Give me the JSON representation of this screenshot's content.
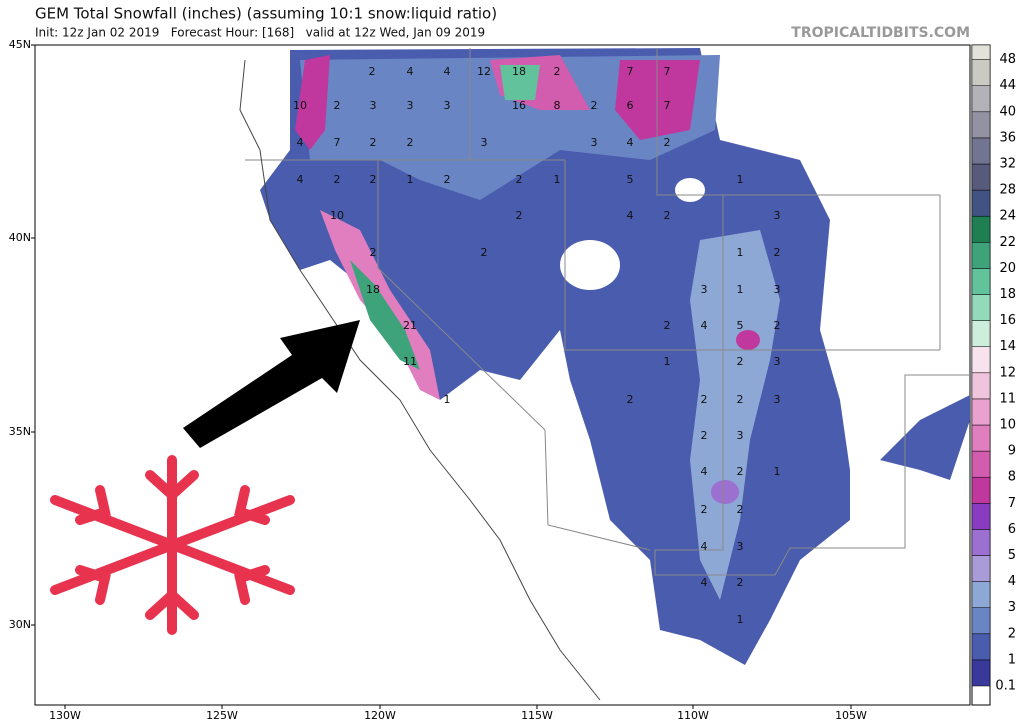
{
  "header": {
    "title": "GEM Total Snowfall (inches) (assuming 10:1 snow:liquid ratio)",
    "subtitle": "Init: 12z Jan 02 2019   Forecast Hour: [168]   valid at 12z Wed, Jan 09 2019",
    "brand": "TROPICALTIDBITS.COM"
  },
  "map": {
    "lat_labels": [
      "45N",
      "40N",
      "35N",
      "30N"
    ],
    "lon_labels": [
      "130W",
      "125W",
      "120W",
      "115W",
      "110W",
      "105W"
    ],
    "colorbar": {
      "levels": [
        0.1,
        1,
        2,
        3,
        4,
        5,
        6,
        7,
        8,
        9,
        10,
        11,
        12,
        14,
        16,
        18,
        20,
        22,
        24,
        28,
        32,
        36,
        40,
        44,
        48
      ],
      "colors": [
        "#38399a",
        "#4a5cae",
        "#6a85c4",
        "#8ea8d6",
        "#a99ad8",
        "#9b70d0",
        "#8a3cc0",
        "#c0389e",
        "#d25cae",
        "#e07ec0",
        "#e9a2cf",
        "#f1c4de",
        "#f8e2ee",
        "#cdeedd",
        "#94d9bb",
        "#62c29b",
        "#3ea37a",
        "#1f7e52",
        "#425383",
        "#585a7c",
        "#727491",
        "#9292a2",
        "#b2b2b8",
        "#cacac2",
        "#e2e2da"
      ]
    },
    "point_labels": [
      "2",
      "4",
      "4",
      "12",
      "18",
      "2",
      "7",
      "7",
      "10",
      "2",
      "3",
      "3",
      "3",
      "16",
      "8",
      "2",
      "6",
      "7",
      "4",
      "7",
      "2",
      "2",
      "3",
      "3",
      "4",
      "2",
      "4",
      "2",
      "2",
      "1",
      "2",
      "2",
      "1",
      "5",
      "1",
      "10",
      "2",
      "4",
      "2",
      "3",
      "2",
      "2",
      "1",
      "2",
      "18",
      "3",
      "1",
      "3",
      "21",
      "2",
      "4",
      "5",
      "2",
      "11",
      "1",
      "2",
      "3",
      "1",
      "2",
      "2",
      "2",
      "3",
      "2",
      "3",
      "4",
      "2",
      "1",
      "2",
      "2",
      "4",
      "3",
      "4",
      "2",
      "1"
    ]
  }
}
